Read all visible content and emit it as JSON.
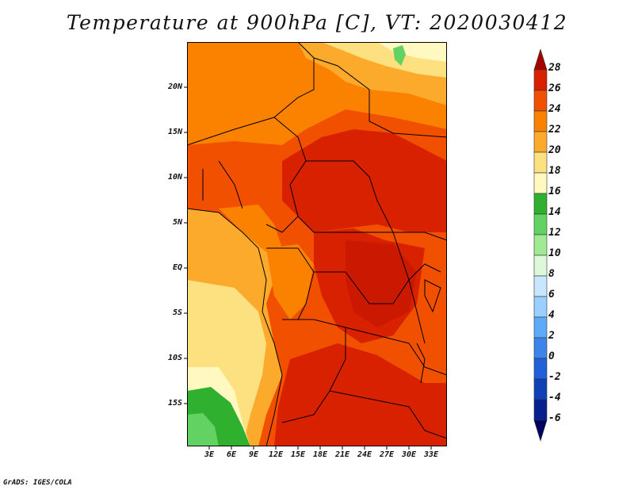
{
  "title": "Temperature at 900hPa [C], VT: 2020030412",
  "footer": "GrADS: IGES/COLA",
  "map": {
    "region": "Central and Southern Africa",
    "lat_labels": [
      "20N",
      "15N",
      "10N",
      "5N",
      "EQ",
      "5S",
      "10S",
      "15S"
    ],
    "lon_labels": [
      "3E",
      "6E",
      "9E",
      "12E",
      "15E",
      "18E",
      "21E",
      "24E",
      "27E",
      "30E",
      "33E"
    ]
  },
  "colorbar": {
    "unit": "C",
    "labels": [
      "28",
      "26",
      "24",
      "22",
      "20",
      "18",
      "16",
      "14",
      "12",
      "10",
      "8",
      "6",
      "4",
      "2",
      "0",
      "-2",
      "-4",
      "-6"
    ],
    "colors": [
      "#a50000",
      "#d82100",
      "#f05000",
      "#fa8200",
      "#fcaa2c",
      "#fde080",
      "#fff8c0",
      "#2fb02f",
      "#62d262",
      "#a0ea94",
      "#dcf8d8",
      "#c8e6ff",
      "#9ad0ff",
      "#5eaaf8",
      "#3c84ea",
      "#2060d8",
      "#1040b8",
      "#081f90",
      "#000060"
    ]
  }
}
